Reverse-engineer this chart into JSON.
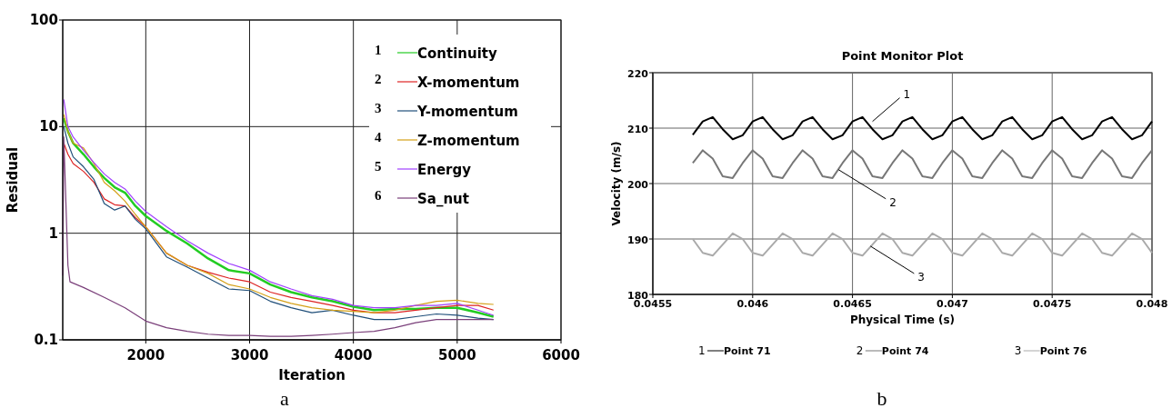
{
  "chart_data": [
    {
      "type": "line",
      "xlabel": "Iteration",
      "ylabel": "Residual",
      "log": "y",
      "grid": true,
      "legend": "top right",
      "xlim": [
        1200,
        6000
      ],
      "xticks": [
        2000,
        3000,
        4000,
        5000,
        6000
      ],
      "ylim": [
        0.1,
        100
      ],
      "yticks": [
        0.1,
        1,
        10,
        100
      ],
      "x": [
        1210,
        1250,
        1300,
        1400,
        1500,
        1600,
        1700,
        1800,
        1900,
        2000,
        2200,
        2400,
        2600,
        2800,
        3000,
        3200,
        3400,
        3600,
        3800,
        4000,
        4200,
        4400,
        4600,
        4800,
        5000,
        5200,
        5350
      ],
      "series": [
        {
          "name": "Continuity",
          "color": "#22cc22",
          "values": [
            12,
            9,
            7,
            5.5,
            4.2,
            3.3,
            2.7,
            2.4,
            1.8,
            1.45,
            1.05,
            0.8,
            0.58,
            0.45,
            0.42,
            0.33,
            0.28,
            0.25,
            0.23,
            0.205,
            0.19,
            0.195,
            0.195,
            0.2,
            0.2,
            0.18,
            0.165
          ]
        },
        {
          "name": "X-momentum",
          "color": "#dd2222",
          "values": [
            7,
            5.5,
            4.5,
            3.8,
            3,
            2.1,
            1.85,
            1.8,
            1.4,
            1.15,
            0.65,
            0.5,
            0.43,
            0.38,
            0.35,
            0.28,
            0.25,
            0.23,
            0.21,
            0.19,
            0.18,
            0.18,
            0.19,
            0.2,
            0.21,
            0.21,
            0.19
          ]
        },
        {
          "name": "Y-momentum",
          "color": "#1f4e79",
          "values": [
            10,
            7,
            5.2,
            4.2,
            3.2,
            1.9,
            1.65,
            1.8,
            1.35,
            1.1,
            0.6,
            0.48,
            0.38,
            0.3,
            0.29,
            0.23,
            0.2,
            0.18,
            0.19,
            0.17,
            0.155,
            0.155,
            0.165,
            0.175,
            0.17,
            0.16,
            0.155
          ]
        },
        {
          "name": "Z-momentum",
          "color": "#d4a017",
          "values": [
            13,
            9,
            7,
            6.3,
            4.5,
            3,
            2.5,
            2,
            1.5,
            1.15,
            0.65,
            0.5,
            0.42,
            0.33,
            0.3,
            0.25,
            0.22,
            0.2,
            0.19,
            0.185,
            0.18,
            0.19,
            0.21,
            0.23,
            0.235,
            0.22,
            0.215
          ]
        },
        {
          "name": "Energy",
          "color": "#a040ff",
          "values": [
            18,
            10,
            8,
            6,
            4.6,
            3.6,
            3,
            2.6,
            2,
            1.6,
            1.15,
            0.85,
            0.65,
            0.52,
            0.45,
            0.35,
            0.3,
            0.26,
            0.24,
            0.21,
            0.2,
            0.2,
            0.21,
            0.21,
            0.22,
            0.19,
            0.17
          ]
        },
        {
          "name": "Sa_nut",
          "color": "#7a3f7a",
          "x": [
            1200,
            1210,
            1230,
            1250,
            1270,
            1400,
            1600,
            1800,
            2000,
            2200,
            2400,
            2600,
            2800,
            3000,
            3200,
            3400,
            3600,
            3800,
            4000,
            4200,
            4400,
            4600,
            4800,
            5000,
            5200,
            5350
          ],
          "values": [
            0.4,
            8,
            2,
            0.5,
            0.35,
            0.31,
            0.25,
            0.2,
            0.15,
            0.13,
            0.12,
            0.113,
            0.11,
            0.11,
            0.108,
            0.108,
            0.11,
            0.113,
            0.117,
            0.12,
            0.13,
            0.145,
            0.155,
            0.155,
            0.155,
            0.155
          ]
        }
      ],
      "annotations": [
        "1",
        "2",
        "3",
        "4",
        "5",
        "6",
        "a"
      ]
    },
    {
      "type": "line",
      "title": "Point Monitor Plot",
      "xlabel": "Physical Time (s)",
      "ylabel": "Velocity (m/s)",
      "grid": true,
      "legend": "bottom",
      "xlim": [
        0.0455,
        0.048
      ],
      "xticks": [
        0.0455,
        0.046,
        0.0465,
        0.047,
        0.0475,
        0.048
      ],
      "ylim": [
        180,
        220
      ],
      "yticks": [
        180,
        190,
        200,
        210,
        220
      ],
      "x": [
        0.0457,
        0.04575,
        0.0458,
        0.04585,
        0.0459,
        0.04595,
        0.046,
        0.04605,
        0.0461,
        0.04615,
        0.0462,
        0.04625,
        0.0463,
        0.04635,
        0.0464,
        0.04645,
        0.0465,
        0.04655,
        0.0466,
        0.04665,
        0.0467,
        0.04675,
        0.0468,
        0.04685,
        0.0469,
        0.04695,
        0.047,
        0.04705,
        0.0471,
        0.04715,
        0.0472,
        0.04725,
        0.0473,
        0.04735,
        0.0474,
        0.04745,
        0.0475,
        0.04755,
        0.0476,
        0.04765,
        0.0477,
        0.04775,
        0.0478,
        0.04785,
        0.0479,
        0.04795,
        0.048
      ],
      "series": [
        {
          "name": "Point 71",
          "color": "#000000",
          "values": [
            208.8,
            211.2,
            212,
            209.8,
            208,
            208.7,
            211.2,
            212,
            209.8,
            208,
            208.7,
            211.2,
            212,
            209.8,
            208,
            208.7,
            211.2,
            212,
            209.8,
            208,
            208.7,
            211.2,
            212,
            209.8,
            208,
            208.7,
            211.2,
            212,
            209.8,
            208,
            208.7,
            211.2,
            212,
            209.8,
            208,
            208.7,
            211.2,
            212,
            209.8,
            208,
            208.7,
            211.2,
            212,
            209.8,
            208,
            208.7,
            211.2
          ]
        },
        {
          "name": "Point 74",
          "color": "#777777",
          "values": [
            203.7,
            206,
            204.5,
            201.3,
            201,
            203.7,
            206,
            204.5,
            201.3,
            201,
            203.7,
            206,
            204.5,
            201.3,
            201,
            203.7,
            206,
            204.5,
            201.3,
            201,
            203.7,
            206,
            204.5,
            201.3,
            201,
            203.7,
            206,
            204.5,
            201.3,
            201,
            203.7,
            206,
            204.5,
            201.3,
            201,
            203.7,
            206,
            204.5,
            201.3,
            201,
            203.7,
            206,
            204.5,
            201.3,
            201,
            203.7,
            206
          ]
        },
        {
          "name": "Point 76",
          "color": "#aaaaaa",
          "values": [
            190,
            187.5,
            187,
            189,
            191,
            190,
            187.5,
            187,
            189,
            191,
            190,
            187.5,
            187,
            189,
            191,
            190,
            187.5,
            187,
            189,
            191,
            190,
            187.5,
            187,
            189,
            191,
            190,
            187.5,
            187,
            189,
            191,
            190,
            187.5,
            187,
            189,
            191,
            190,
            187.5,
            187,
            189,
            191,
            190,
            187.5,
            187,
            189,
            191,
            190,
            187.5
          ]
        }
      ],
      "annotations": [
        {
          "text": "1",
          "x": 0.0466,
          "y": 211.2
        },
        {
          "text": "2",
          "x": 0.04643,
          "y": 202.5
        },
        {
          "text": "3",
          "x": 0.04659,
          "y": 188.7
        },
        "b"
      ]
    }
  ]
}
